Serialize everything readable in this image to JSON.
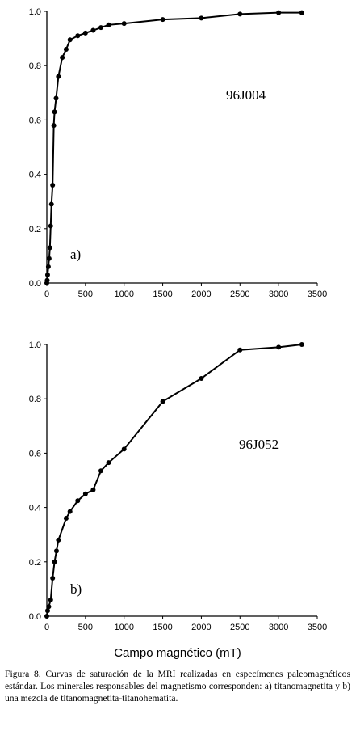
{
  "chart_data": [
    {
      "type": "line",
      "annotation": "96J004",
      "panel_label": "a)",
      "xlim": [
        0,
        3500
      ],
      "ylim": [
        0,
        1.0
      ],
      "xticks": [
        0,
        500,
        1000,
        1500,
        2000,
        2500,
        3000,
        3500
      ],
      "yticks": [
        0.0,
        0.2,
        0.4,
        0.6,
        0.8,
        1.0
      ],
      "xtick_labels": [
        "0",
        "500",
        "1000",
        "1500",
        "2000",
        "2500",
        "3000",
        "3500"
      ],
      "ytick_labels": [
        "0.0",
        "0.2",
        "0.4",
        "0.6",
        "0.8",
        "1.0"
      ],
      "series": [
        {
          "x": [
            0,
            5,
            10,
            20,
            30,
            40,
            50,
            60,
            75,
            90,
            100,
            120,
            150,
            200,
            250,
            300,
            400,
            500,
            600,
            700,
            800,
            1000,
            1500,
            2000,
            2500,
            3000,
            3300
          ],
          "y": [
            0.0,
            0.01,
            0.03,
            0.06,
            0.09,
            0.13,
            0.21,
            0.29,
            0.36,
            0.58,
            0.63,
            0.68,
            0.76,
            0.83,
            0.86,
            0.895,
            0.91,
            0.92,
            0.93,
            0.94,
            0.95,
            0.955,
            0.97,
            0.975,
            0.99,
            0.995,
            0.995
          ]
        }
      ]
    },
    {
      "type": "line",
      "annotation": "96J052",
      "panel_label": "b)",
      "xlim": [
        0,
        3500
      ],
      "ylim": [
        0,
        1.0
      ],
      "xticks": [
        0,
        500,
        1000,
        1500,
        2000,
        2500,
        3000,
        3500
      ],
      "yticks": [
        0.0,
        0.2,
        0.4,
        0.6,
        0.8,
        1.0
      ],
      "xtick_labels": [
        "0",
        "500",
        "1000",
        "1500",
        "2000",
        "2500",
        "3000",
        "3500"
      ],
      "ytick_labels": [
        "0.0",
        "0.2",
        "0.4",
        "0.6",
        "0.8",
        "1.0"
      ],
      "series": [
        {
          "x": [
            0,
            10,
            25,
            50,
            75,
            100,
            125,
            150,
            250,
            300,
            400,
            500,
            600,
            700,
            800,
            1000,
            1500,
            2000,
            2500,
            3000,
            3300
          ],
          "y": [
            0.0,
            0.02,
            0.035,
            0.06,
            0.14,
            0.2,
            0.24,
            0.28,
            0.36,
            0.385,
            0.425,
            0.45,
            0.465,
            0.535,
            0.565,
            0.615,
            0.79,
            0.875,
            0.98,
            0.99,
            1.0
          ]
        }
      ]
    }
  ],
  "xlabel": "Campo magnético (mT)",
  "caption": "Figura 8.  Curvas de saturación de la MRI realizadas en especímenes paleomagnéticos estándar. Los minerales responsables del magnetismo corresponden: a) titanomagnetita  y b) una mezcla de titanomagnetita-titanohematita."
}
